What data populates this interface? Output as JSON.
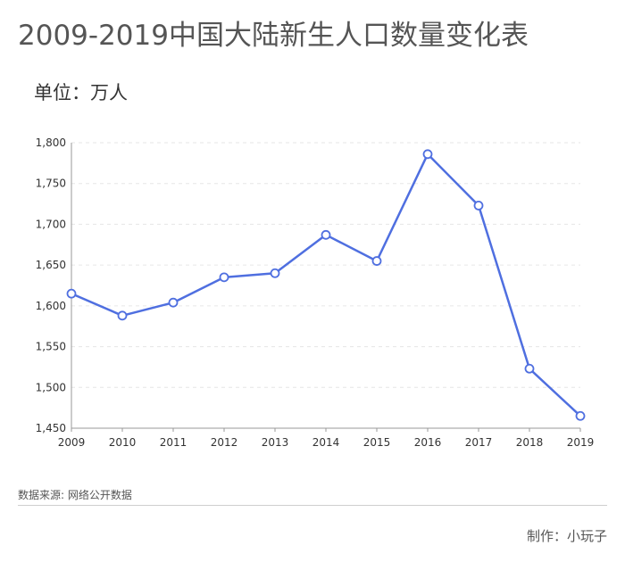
{
  "header": {
    "title": "2009-2019中国大陆新生人口数量变化表",
    "unit": "单位：万人"
  },
  "footer": {
    "source": "数据来源: 网络公开数据",
    "author": "制作：小玩子"
  },
  "colors": {
    "line": "#4f6fe0",
    "marker_fill": "#ffffff",
    "axis": "#999999",
    "grid": "#e6e6e6",
    "text": "#333333"
  },
  "chart_data": {
    "type": "line",
    "title": "2009-2019中国大陆新生人口数量变化表",
    "xlabel": "",
    "ylabel": "",
    "x": [
      "2009",
      "2010",
      "2011",
      "2012",
      "2013",
      "2014",
      "2015",
      "2016",
      "2017",
      "2018",
      "2019"
    ],
    "series": [
      {
        "values": [
          1615,
          1588,
          1604,
          1635,
          1640,
          1687,
          1655,
          1786,
          1723,
          1523,
          1465
        ]
      }
    ],
    "ylim": [
      1450,
      1800
    ],
    "yticks": [
      1450,
      1500,
      1550,
      1600,
      1650,
      1700,
      1750,
      1800
    ],
    "ytick_labels": [
      "1,450",
      "1,500",
      "1,550",
      "1,600",
      "1,650",
      "1,700",
      "1,750",
      "1,800"
    ],
    "grid": true,
    "grid_style": "dashed",
    "legend": "none"
  }
}
